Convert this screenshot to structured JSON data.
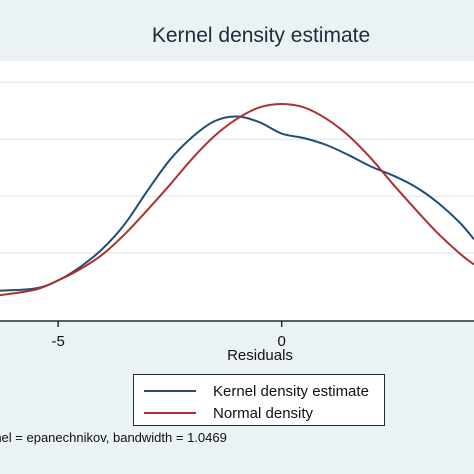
{
  "chart_data": {
    "type": "line",
    "title": "Kernel density estimate",
    "xlabel": "Residuals",
    "ylabel": "",
    "x_ticks": [
      -5,
      0
    ],
    "x_tick_labels": [
      "-5",
      "0"
    ],
    "xlim": [
      -6.3,
      4.3
    ],
    "ylim": [
      0,
      0.21
    ],
    "grid": true,
    "legend_position": "bottom-center",
    "series": [
      {
        "name": "Kernel density estimate",
        "color": "#1f4e79",
        "x": [
          -6.3,
          -5.5,
          -5.0,
          -4.5,
          -4.0,
          -3.5,
          -3.0,
          -2.5,
          -2.0,
          -1.5,
          -1.0,
          -0.5,
          0.0,
          0.5,
          1.0,
          1.5,
          2.0,
          2.5,
          3.0,
          3.5,
          4.0,
          4.3
        ],
        "y": [
          0.017,
          0.019,
          0.026,
          0.038,
          0.054,
          0.076,
          0.105,
          0.132,
          0.152,
          0.166,
          0.17,
          0.165,
          0.155,
          0.151,
          0.145,
          0.136,
          0.126,
          0.118,
          0.108,
          0.094,
          0.076,
          0.062
        ]
      },
      {
        "name": "Normal density",
        "color": "#b03030",
        "x": [
          -6.3,
          -5.5,
          -5.0,
          -4.5,
          -4.0,
          -3.5,
          -3.0,
          -2.5,
          -2.0,
          -1.5,
          -1.0,
          -0.5,
          0.0,
          0.5,
          1.0,
          1.5,
          2.0,
          2.5,
          3.0,
          3.5,
          4.0,
          4.3
        ],
        "y": [
          0.013,
          0.018,
          0.026,
          0.036,
          0.049,
          0.067,
          0.088,
          0.11,
          0.133,
          0.153,
          0.168,
          0.178,
          0.181,
          0.178,
          0.168,
          0.153,
          0.133,
          0.11,
          0.088,
          0.067,
          0.049,
          0.04
        ]
      }
    ],
    "legend": [
      "Kernel density estimate",
      "Normal density"
    ],
    "note": "rnel = epanechnikov, bandwidth = 1.0469"
  },
  "colors": {
    "background": "#eaf2f3",
    "plot_background": "#ffffff",
    "gridline": "#e1e8ec",
    "axis": "#1e2d3b"
  }
}
